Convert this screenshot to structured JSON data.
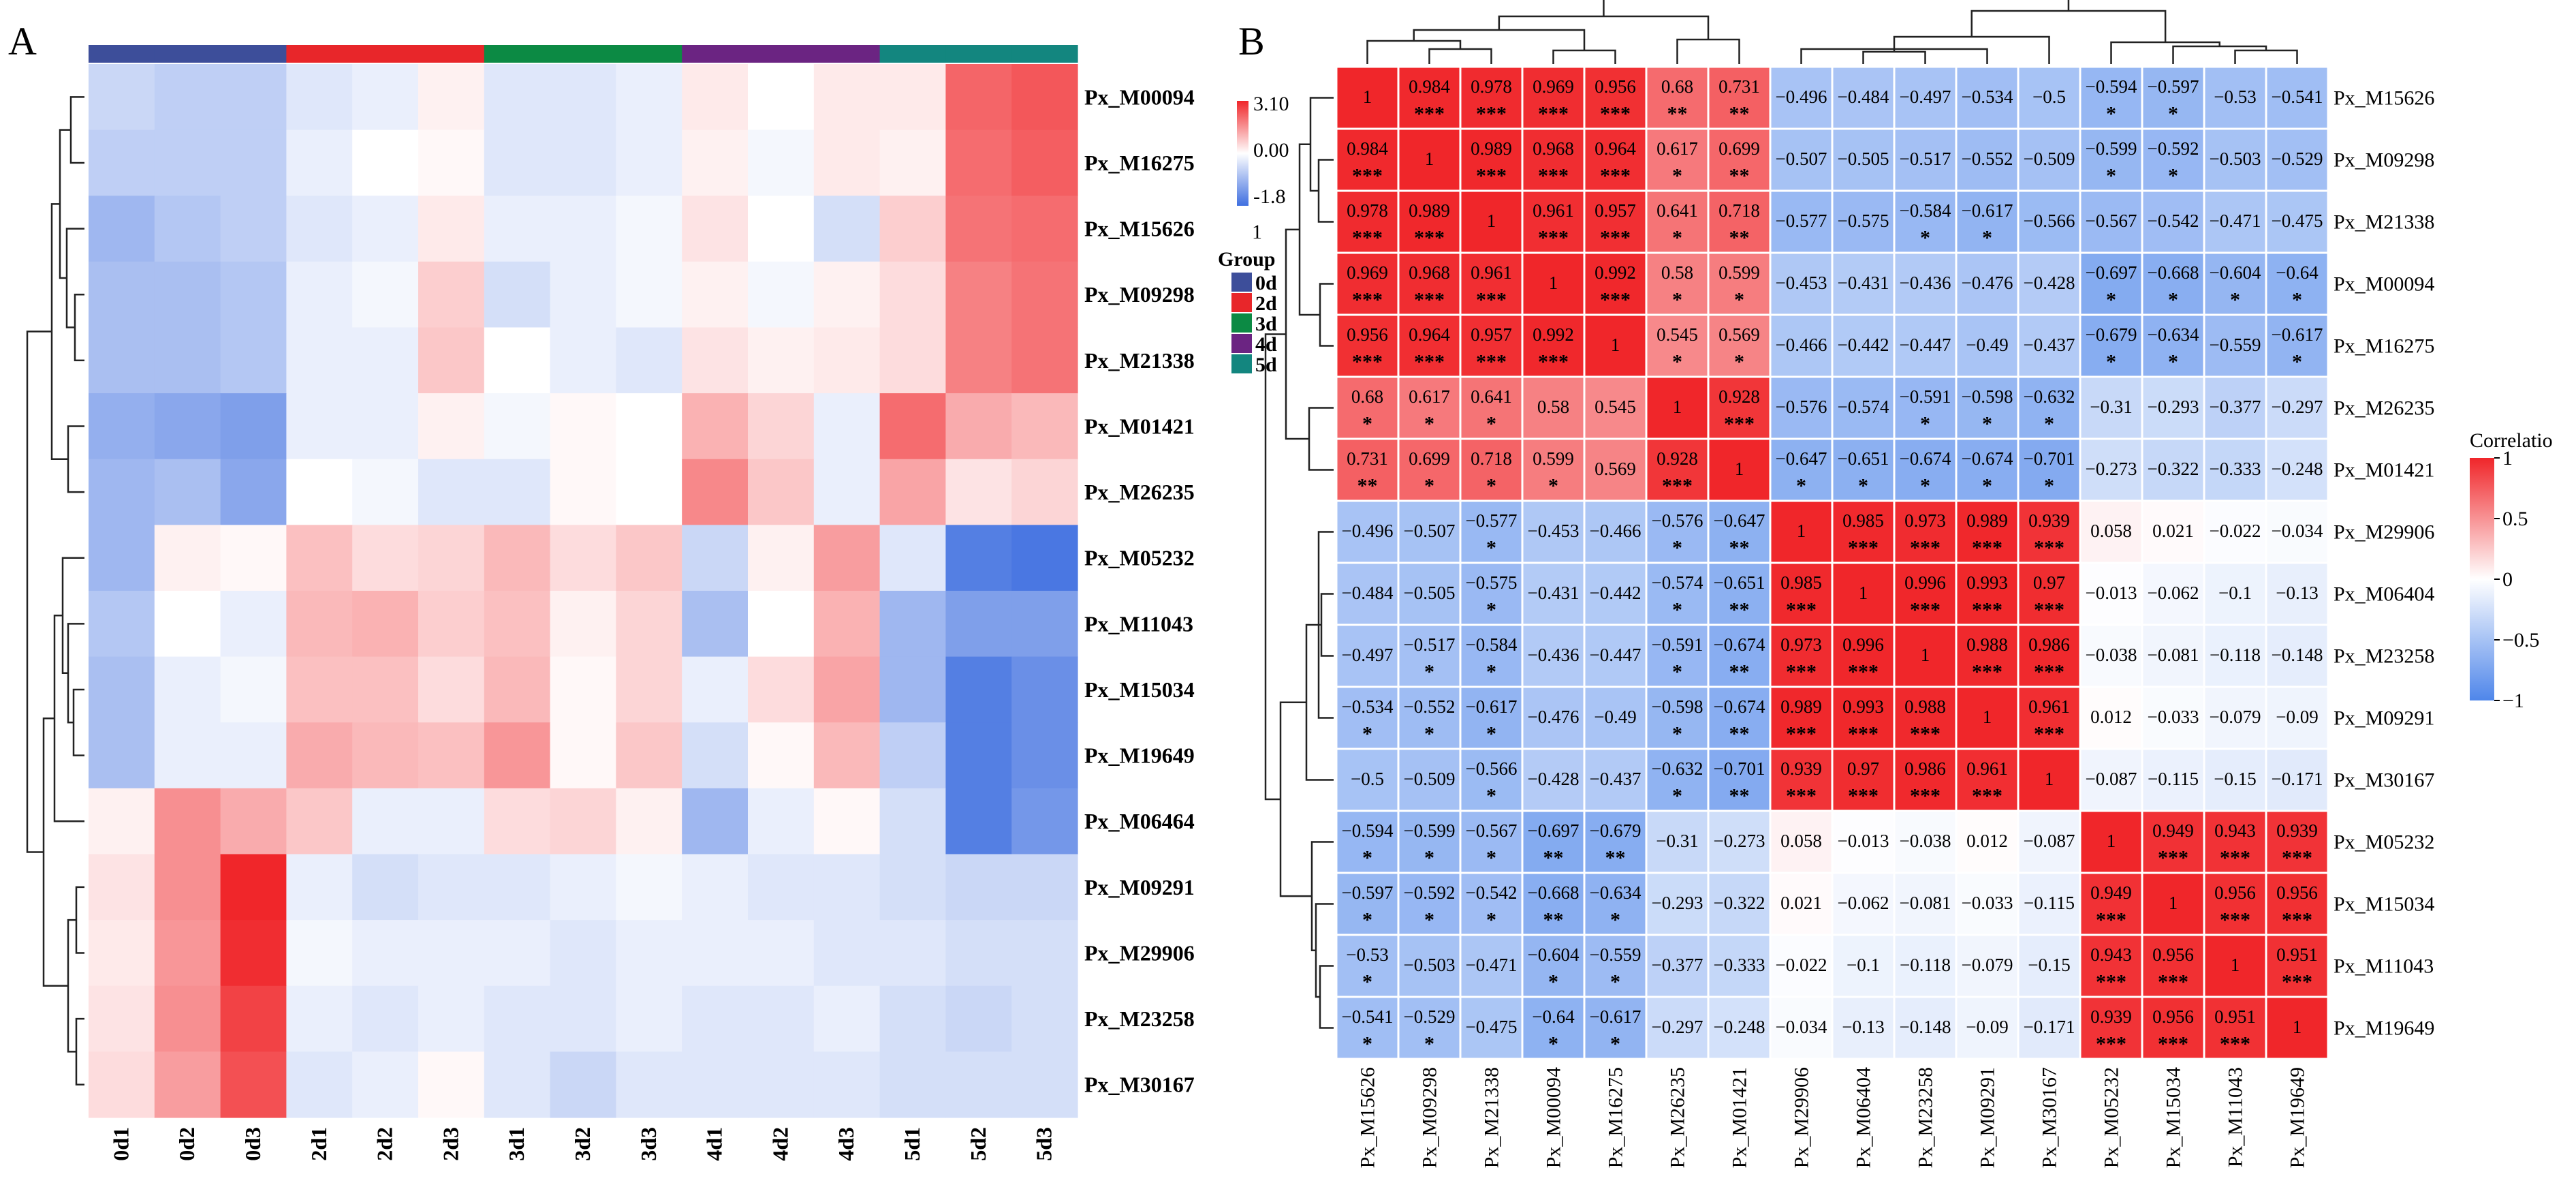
{
  "panels": {
    "a": "A",
    "b": "B"
  },
  "groups": {
    "title": "Group",
    "items": [
      {
        "name": "0d",
        "color": "#3d4e9a"
      },
      {
        "name": "2d",
        "color": "#e8262a"
      },
      {
        "name": "3d",
        "color": "#0c8a44"
      },
      {
        "name": "4d",
        "color": "#6b2482"
      },
      {
        "name": "5d",
        "color": "#13867f"
      }
    ]
  },
  "chart_data": [
    {
      "type": "heatmap",
      "panel": "A",
      "columns": [
        "0d1",
        "0d2",
        "0d3",
        "2d1",
        "2d2",
        "2d3",
        "3d1",
        "3d2",
        "3d3",
        "4d1",
        "4d2",
        "4d3",
        "5d1",
        "5d2",
        "5d3"
      ],
      "column_groups": [
        "0d",
        "0d",
        "0d",
        "2d",
        "2d",
        "2d",
        "3d",
        "3d",
        "3d",
        "4d",
        "4d",
        "4d",
        "5d",
        "5d",
        "5d"
      ],
      "rows": [
        "Px_M00094",
        "Px_M16275",
        "Px_M15626",
        "Px_M09298",
        "Px_M21338",
        "Px_M01421",
        "Px_M26235",
        "Px_M05232",
        "Px_M11043",
        "Px_M15034",
        "Px_M19649",
        "Px_M06464",
        "Px_M09291",
        "Px_M29906",
        "Px_M23258",
        "Px_M30167"
      ],
      "values": [
        [
          -0.5,
          -0.6,
          -0.6,
          -0.3,
          -0.2,
          0.2,
          -0.3,
          -0.3,
          -0.2,
          0.3,
          0.0,
          0.3,
          0.3,
          2.2,
          2.4
        ],
        [
          -0.6,
          -0.6,
          -0.6,
          -0.2,
          0.0,
          0.1,
          -0.3,
          -0.3,
          -0.2,
          0.2,
          -0.1,
          0.3,
          0.2,
          2.1,
          2.3
        ],
        [
          -0.9,
          -0.7,
          -0.6,
          -0.3,
          -0.2,
          0.3,
          -0.2,
          -0.2,
          -0.1,
          0.4,
          0.0,
          -0.4,
          0.7,
          2.0,
          2.1
        ],
        [
          -0.8,
          -0.8,
          -0.7,
          -0.2,
          -0.1,
          0.7,
          -0.4,
          -0.2,
          -0.1,
          0.2,
          -0.1,
          0.2,
          0.5,
          1.8,
          2.0
        ],
        [
          -0.8,
          -0.8,
          -0.7,
          -0.2,
          -0.2,
          0.8,
          0.0,
          -0.2,
          -0.3,
          0.4,
          0.2,
          0.3,
          0.5,
          1.8,
          2.0
        ],
        [
          -1.0,
          -1.1,
          -1.2,
          -0.2,
          -0.2,
          0.2,
          -0.1,
          0.1,
          0.0,
          1.1,
          0.6,
          -0.2,
          2.1,
          1.2,
          1.0
        ],
        [
          -0.9,
          -0.8,
          -1.1,
          0.0,
          -0.1,
          -0.3,
          -0.3,
          0.1,
          0.0,
          1.7,
          0.8,
          -0.2,
          1.3,
          0.4,
          0.6
        ],
        [
          -0.9,
          0.2,
          0.1,
          0.9,
          0.5,
          0.6,
          1.0,
          0.5,
          0.8,
          -0.5,
          0.2,
          1.4,
          -0.3,
          -1.6,
          -1.7
        ],
        [
          -0.7,
          0.0,
          -0.2,
          1.0,
          1.1,
          0.7,
          0.9,
          0.2,
          0.6,
          -0.8,
          0.0,
          1.1,
          -0.9,
          -1.2,
          -1.2
        ],
        [
          -0.8,
          -0.2,
          -0.1,
          0.9,
          0.9,
          0.5,
          1.0,
          0.1,
          0.6,
          -0.2,
          0.5,
          1.3,
          -0.9,
          -1.6,
          -1.4
        ],
        [
          -0.8,
          -0.2,
          -0.2,
          1.2,
          1.0,
          0.9,
          1.5,
          0.1,
          0.8,
          -0.4,
          0.1,
          1.0,
          -0.6,
          -1.6,
          -1.4
        ],
        [
          0.2,
          1.6,
          1.2,
          0.8,
          -0.2,
          -0.2,
          0.5,
          0.6,
          0.2,
          -0.9,
          -0.2,
          0.1,
          -0.4,
          -1.6,
          -1.3
        ],
        [
          0.4,
          1.6,
          3.1,
          -0.2,
          -0.4,
          -0.3,
          -0.3,
          -0.2,
          -0.1,
          -0.2,
          -0.3,
          -0.3,
          -0.4,
          -0.5,
          -0.5
        ],
        [
          0.3,
          1.5,
          3.0,
          -0.1,
          -0.2,
          -0.2,
          -0.2,
          -0.3,
          -0.2,
          -0.2,
          -0.2,
          -0.3,
          -0.3,
          -0.4,
          -0.4
        ],
        [
          0.4,
          1.6,
          2.7,
          -0.2,
          -0.3,
          -0.2,
          -0.3,
          -0.3,
          -0.2,
          -0.3,
          -0.3,
          -0.2,
          -0.4,
          -0.5,
          -0.4
        ],
        [
          0.5,
          1.4,
          2.5,
          -0.3,
          -0.2,
          0.1,
          -0.3,
          -0.5,
          -0.3,
          -0.3,
          -0.3,
          -0.3,
          -0.4,
          -0.4,
          -0.4
        ]
      ],
      "legend": {
        "max_label": "3.10",
        "mid_label": "0.00",
        "min_label": "-1.8",
        "extra_label": "1",
        "range": [
          -1.8,
          3.1
        ]
      }
    },
    {
      "type": "heatmap",
      "panel": "B",
      "labels": [
        "Px_M15626",
        "Px_M09298",
        "Px_M21338",
        "Px_M00094",
        "Px_M16275",
        "Px_M26235",
        "Px_M01421",
        "Px_M29906",
        "Px_M06404",
        "Px_M23258",
        "Px_M09291",
        "Px_M30167",
        "Px_M05232",
        "Px_M15034",
        "Px_M11043",
        "Px_M19649"
      ],
      "values": [
        [
          "1",
          "0.984",
          "0.978",
          "0.969",
          "0.956",
          "0.68",
          "0.731",
          "-0.496",
          "-0.484",
          "-0.497",
          "-0.534",
          "-0.5",
          "-0.594",
          "-0.597",
          "-0.53",
          "-0.541"
        ],
        [
          "0.984",
          "1",
          "0.989",
          "0.968",
          "0.964",
          "0.617",
          "0.699",
          "-0.507",
          "-0.505",
          "-0.517",
          "-0.552",
          "-0.509",
          "-0.599",
          "-0.592",
          "-0.503",
          "-0.529"
        ],
        [
          "0.978",
          "0.989",
          "1",
          "0.961",
          "0.957",
          "0.641",
          "0.718",
          "-0.577",
          "-0.575",
          "-0.584",
          "-0.617",
          "-0.566",
          "-0.567",
          "-0.542",
          "-0.471",
          "-0.475"
        ],
        [
          "0.969",
          "0.968",
          "0.961",
          "1",
          "0.992",
          "0.58",
          "0.599",
          "-0.453",
          "-0.431",
          "-0.436",
          "-0.476",
          "-0.428",
          "-0.697",
          "-0.668",
          "-0.604",
          "-0.64"
        ],
        [
          "0.956",
          "0.964",
          "0.957",
          "0.992",
          "1",
          "0.545",
          "0.569",
          "-0.466",
          "-0.442",
          "-0.447",
          "-0.49",
          "-0.437",
          "-0.679",
          "-0.634",
          "-0.559",
          "-0.617"
        ],
        [
          "0.68",
          "0.617",
          "0.641",
          "0.58",
          "0.545",
          "1",
          "0.928",
          "-0.576",
          "-0.574",
          "-0.591",
          "-0.598",
          "-0.632",
          "-0.31",
          "-0.293",
          "-0.377",
          "-0.297"
        ],
        [
          "0.731",
          "0.699",
          "0.718",
          "0.599",
          "0.569",
          "0.928",
          "1",
          "-0.647",
          "-0.651",
          "-0.674",
          "-0.674",
          "-0.701",
          "-0.273",
          "-0.322",
          "-0.333",
          "-0.248"
        ],
        [
          "-0.496",
          "-0.507",
          "-0.577",
          "-0.453",
          "-0.466",
          "-0.576",
          "-0.647",
          "1",
          "0.985",
          "0.973",
          "0.989",
          "0.939",
          "0.058",
          "0.021",
          "-0.022",
          "-0.034"
        ],
        [
          "-0.484",
          "-0.505",
          "-0.575",
          "-0.431",
          "-0.442",
          "-0.574",
          "-0.651",
          "0.985",
          "1",
          "0.996",
          "0.993",
          "0.97",
          "-0.013",
          "-0.062",
          "-0.1",
          "-0.13"
        ],
        [
          "-0.497",
          "-0.517",
          "-0.584",
          "-0.436",
          "-0.447",
          "-0.591",
          "-0.674",
          "0.973",
          "0.996",
          "1",
          "0.988",
          "0.986",
          "-0.038",
          "-0.081",
          "-0.118",
          "-0.148"
        ],
        [
          "-0.534",
          "-0.552",
          "-0.617",
          "-0.476",
          "-0.49",
          "-0.598",
          "-0.674",
          "0.989",
          "0.993",
          "0.988",
          "1",
          "0.961",
          "0.012",
          "-0.033",
          "-0.079",
          "-0.09"
        ],
        [
          "-0.5",
          "-0.509",
          "-0.566",
          "-0.428",
          "-0.437",
          "-0.632",
          "-0.701",
          "0.939",
          "0.97",
          "0.986",
          "0.961",
          "1",
          "-0.087",
          "-0.115",
          "-0.15",
          "-0.171"
        ],
        [
          "-0.594",
          "-0.599",
          "-0.567",
          "-0.697",
          "-0.679",
          "-0.31",
          "-0.273",
          "0.058",
          "-0.013",
          "-0.038",
          "0.012",
          "-0.087",
          "1",
          "0.949",
          "0.943",
          "0.939"
        ],
        [
          "-0.597",
          "-0.592",
          "-0.542",
          "-0.668",
          "-0.634",
          "-0.293",
          "-0.322",
          "0.021",
          "-0.062",
          "-0.081",
          "-0.033",
          "-0.115",
          "0.949",
          "1",
          "0.956",
          "0.956"
        ],
        [
          "-0.53",
          "-0.503",
          "-0.471",
          "-0.604",
          "-0.559",
          "-0.377",
          "-0.333",
          "-0.022",
          "-0.1",
          "-0.118",
          "-0.079",
          "-0.15",
          "0.943",
          "0.956",
          "1",
          "0.951"
        ],
        [
          "-0.541",
          "-0.529",
          "-0.475",
          "-0.64",
          "-0.617",
          "-0.297",
          "-0.248",
          "-0.034",
          "-0.13",
          "-0.148",
          "-0.09",
          "-0.171",
          "0.939",
          "0.956",
          "0.951",
          "1"
        ]
      ],
      "stars": [
        [
          "",
          "***",
          "***",
          "***",
          "***",
          "**",
          "**",
          "",
          "",
          "",
          "",
          "",
          "*",
          "*",
          "",
          ""
        ],
        [
          "***",
          "",
          "***",
          "***",
          "***",
          "*",
          "**",
          "",
          "",
          "",
          "",
          "",
          "*",
          "*",
          "",
          ""
        ],
        [
          "***",
          "***",
          "",
          "***",
          "***",
          "*",
          "**",
          "",
          "",
          "*",
          "*",
          "",
          "",
          "",
          "",
          ""
        ],
        [
          "***",
          "***",
          "***",
          "",
          "***",
          "*",
          "*",
          "",
          "",
          "",
          "",
          "",
          "*",
          "*",
          "*",
          "*"
        ],
        [
          "***",
          "***",
          "***",
          "***",
          "",
          "*",
          "*",
          "",
          "",
          "",
          "",
          "",
          "*",
          "*",
          "",
          "*"
        ],
        [
          "*",
          "*",
          "*",
          "",
          "",
          "",
          "***",
          "",
          "",
          "*",
          "*",
          "*",
          "",
          "",
          "",
          ""
        ],
        [
          "**",
          "*",
          "*",
          "*",
          "",
          "***",
          "",
          "*",
          "*",
          "*",
          "*",
          "*",
          "",
          "",
          "",
          ""
        ],
        [
          "",
          "",
          "*",
          "",
          "",
          "*",
          "**",
          "",
          "***",
          "***",
          "***",
          "***",
          "",
          "",
          "",
          ""
        ],
        [
          "",
          "",
          "*",
          "",
          "",
          "*",
          "**",
          "***",
          "",
          "***",
          "***",
          "***",
          "",
          "",
          "",
          ""
        ],
        [
          "",
          "*",
          "*",
          "",
          "",
          "*",
          "**",
          "***",
          "***",
          "",
          "***",
          "***",
          "",
          "",
          "",
          ""
        ],
        [
          "*",
          "*",
          "*",
          "",
          "",
          "*",
          "**",
          "***",
          "***",
          "***",
          "",
          "***",
          "",
          "",
          "",
          ""
        ],
        [
          "",
          "",
          "*",
          "",
          "",
          "*",
          "**",
          "***",
          "***",
          "***",
          "***",
          "",
          "",
          "",
          "",
          ""
        ],
        [
          "*",
          "*",
          "*",
          "**",
          "**",
          "",
          "",
          "",
          "",
          "",
          "",
          "",
          "",
          "***",
          "***",
          "***"
        ],
        [
          "*",
          "*",
          "*",
          "**",
          "*",
          "",
          "",
          "",
          "",
          "",
          "",
          "",
          "***",
          "",
          "***",
          "***"
        ],
        [
          "*",
          "",
          "",
          "*",
          "*",
          "",
          "",
          "",
          "",
          "",
          "",
          "",
          "***",
          "***",
          "",
          "***"
        ],
        [
          "*",
          "*",
          "",
          "*",
          "*",
          "",
          "",
          "",
          "",
          "",
          "",
          "",
          "***",
          "***",
          "***",
          ""
        ]
      ],
      "legend": {
        "title": "Correlatio",
        "ticks": [
          "1",
          "0.5",
          "0",
          "-0.5",
          "-1"
        ],
        "range": [
          -1,
          1
        ]
      }
    }
  ]
}
